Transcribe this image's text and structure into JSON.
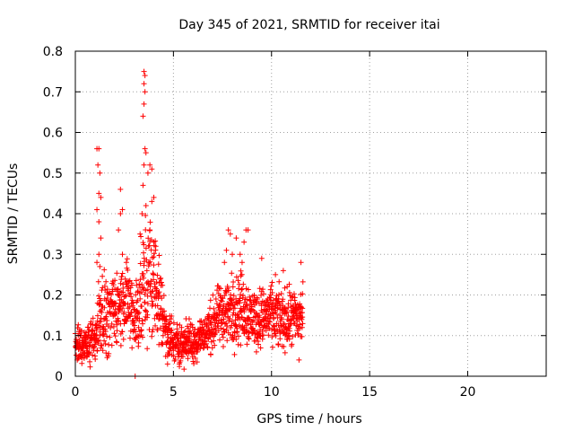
{
  "chart_data": {
    "type": "scatter",
    "title": "Day 345 of 2021, SRMTID for receiver itai",
    "xlabel": "GPS time / hours",
    "ylabel": "SRMTID / TECUs",
    "xlim": [
      0,
      24
    ],
    "ylim": [
      0,
      0.8
    ],
    "x_ticks": [
      0,
      5,
      10,
      15,
      20
    ],
    "y_ticks": [
      0,
      0.1,
      0.2,
      0.3,
      0.4,
      0.5,
      0.6,
      0.7,
      0.8
    ],
    "x_tick_labels": [
      "0",
      "5",
      "10",
      "15",
      "20"
    ],
    "y_tick_labels": [
      "0",
      "0.1",
      "0.2",
      "0.3",
      "0.4",
      "0.5",
      "0.6",
      "0.7",
      "0.8"
    ],
    "grid": true,
    "marker": "+",
    "marker_color": "#ff0000",
    "data_range_hours": [
      0,
      11.6
    ],
    "series": [
      {
        "name": "SRMTID",
        "envelope": [
          {
            "x": 0.0,
            "center": 0.07,
            "spread": 0.03
          },
          {
            "x": 0.6,
            "center": 0.08,
            "spread": 0.035
          },
          {
            "x": 1.0,
            "center": 0.09,
            "spread": 0.04
          },
          {
            "x": 1.3,
            "center": 0.17,
            "spread": 0.08
          },
          {
            "x": 1.7,
            "center": 0.14,
            "spread": 0.06
          },
          {
            "x": 2.2,
            "center": 0.18,
            "spread": 0.06
          },
          {
            "x": 2.6,
            "center": 0.19,
            "spread": 0.07
          },
          {
            "x": 3.0,
            "center": 0.14,
            "spread": 0.06
          },
          {
            "x": 3.4,
            "center": 0.2,
            "spread": 0.1
          },
          {
            "x": 3.8,
            "center": 0.25,
            "spread": 0.1
          },
          {
            "x": 4.2,
            "center": 0.2,
            "spread": 0.09
          },
          {
            "x": 4.6,
            "center": 0.12,
            "spread": 0.05
          },
          {
            "x": 5.0,
            "center": 0.08,
            "spread": 0.035
          },
          {
            "x": 6.0,
            "center": 0.085,
            "spread": 0.035
          },
          {
            "x": 6.8,
            "center": 0.11,
            "spread": 0.04
          },
          {
            "x": 7.3,
            "center": 0.15,
            "spread": 0.05
          },
          {
            "x": 7.9,
            "center": 0.16,
            "spread": 0.06
          },
          {
            "x": 8.5,
            "center": 0.17,
            "spread": 0.06
          },
          {
            "x": 9.2,
            "center": 0.14,
            "spread": 0.05
          },
          {
            "x": 9.8,
            "center": 0.15,
            "spread": 0.05
          },
          {
            "x": 10.5,
            "center": 0.14,
            "spread": 0.05
          },
          {
            "x": 11.0,
            "center": 0.14,
            "spread": 0.05
          },
          {
            "x": 11.6,
            "center": 0.15,
            "spread": 0.05
          }
        ],
        "notable_points": [
          {
            "x": 3.5,
            "y": 0.75
          },
          {
            "x": 3.55,
            "y": 0.74
          },
          {
            "x": 3.5,
            "y": 0.72
          },
          {
            "x": 3.55,
            "y": 0.7
          },
          {
            "x": 3.5,
            "y": 0.67
          },
          {
            "x": 3.45,
            "y": 0.64
          },
          {
            "x": 3.55,
            "y": 0.56
          },
          {
            "x": 3.6,
            "y": 0.55
          },
          {
            "x": 3.5,
            "y": 0.52
          },
          {
            "x": 3.8,
            "y": 0.52
          },
          {
            "x": 3.7,
            "y": 0.5
          },
          {
            "x": 3.9,
            "y": 0.51
          },
          {
            "x": 3.45,
            "y": 0.47
          },
          {
            "x": 3.9,
            "y": 0.43
          },
          {
            "x": 4.0,
            "y": 0.44
          },
          {
            "x": 3.6,
            "y": 0.42
          },
          {
            "x": 3.4,
            "y": 0.4
          },
          {
            "x": 3.8,
            "y": 0.36
          },
          {
            "x": 4.0,
            "y": 0.33
          },
          {
            "x": 4.1,
            "y": 0.32
          },
          {
            "x": 3.3,
            "y": 0.35
          },
          {
            "x": 1.1,
            "y": 0.56
          },
          {
            "x": 1.2,
            "y": 0.56
          },
          {
            "x": 1.15,
            "y": 0.52
          },
          {
            "x": 1.25,
            "y": 0.5
          },
          {
            "x": 1.2,
            "y": 0.45
          },
          {
            "x": 1.3,
            "y": 0.44
          },
          {
            "x": 1.1,
            "y": 0.41
          },
          {
            "x": 1.2,
            "y": 0.38
          },
          {
            "x": 1.3,
            "y": 0.34
          },
          {
            "x": 1.2,
            "y": 0.3
          },
          {
            "x": 1.1,
            "y": 0.28
          },
          {
            "x": 1.25,
            "y": 0.27
          },
          {
            "x": 2.3,
            "y": 0.46
          },
          {
            "x": 2.4,
            "y": 0.41
          },
          {
            "x": 2.3,
            "y": 0.4
          },
          {
            "x": 2.2,
            "y": 0.36
          },
          {
            "x": 2.4,
            "y": 0.3
          },
          {
            "x": 2.6,
            "y": 0.28
          },
          {
            "x": 7.8,
            "y": 0.36
          },
          {
            "x": 7.9,
            "y": 0.35
          },
          {
            "x": 8.2,
            "y": 0.34
          },
          {
            "x": 8.7,
            "y": 0.36
          },
          {
            "x": 8.8,
            "y": 0.36
          },
          {
            "x": 8.6,
            "y": 0.33
          },
          {
            "x": 7.7,
            "y": 0.31
          },
          {
            "x": 8.0,
            "y": 0.3
          },
          {
            "x": 8.4,
            "y": 0.3
          },
          {
            "x": 8.5,
            "y": 0.28
          },
          {
            "x": 7.6,
            "y": 0.28
          },
          {
            "x": 9.5,
            "y": 0.29
          },
          {
            "x": 10.6,
            "y": 0.26
          },
          {
            "x": 11.5,
            "y": 0.28
          },
          {
            "x": 10.2,
            "y": 0.25
          },
          {
            "x": 3.05,
            "y": 0.0
          },
          {
            "x": 4.7,
            "y": 0.03
          },
          {
            "x": 5.3,
            "y": 0.03
          },
          {
            "x": 11.4,
            "y": 0.04
          },
          {
            "x": 0.1,
            "y": 0.04
          }
        ]
      }
    ]
  }
}
